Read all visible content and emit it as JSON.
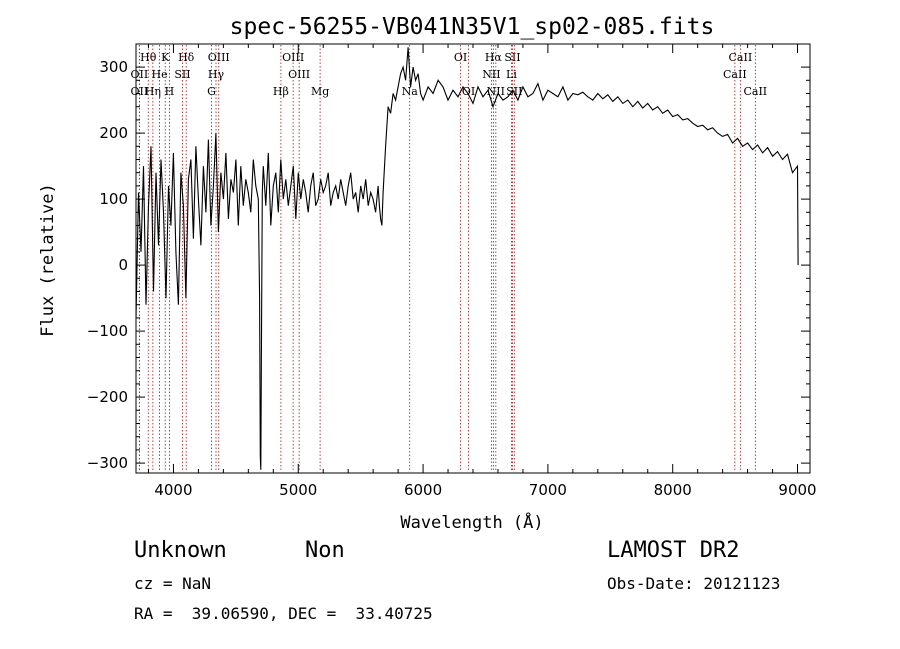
{
  "chart_data": {
    "type": "line",
    "title": "spec-56255-VB041N35V1_sp02-085.fits",
    "xlabel": "Wavelength (Å)",
    "ylabel": "Flux (relative)",
    "xlim": [
      3700,
      9100
    ],
    "ylim": [
      -315,
      335
    ],
    "x_ticks": [
      4000,
      5000,
      6000,
      7000,
      8000,
      9000
    ],
    "y_ticks": [
      -300,
      -200,
      -100,
      0,
      100,
      200,
      300
    ],
    "grid": false,
    "spectrum": {
      "wavelength": [
        3700,
        3720,
        3740,
        3760,
        3780,
        3800,
        3820,
        3840,
        3860,
        3880,
        3900,
        3920,
        3940,
        3960,
        3980,
        4000,
        4020,
        4040,
        4060,
        4080,
        4100,
        4120,
        4140,
        4160,
        4180,
        4200,
        4220,
        4240,
        4260,
        4280,
        4300,
        4320,
        4340,
        4360,
        4380,
        4400,
        4420,
        4440,
        4460,
        4480,
        4500,
        4520,
        4540,
        4560,
        4580,
        4600,
        4620,
        4640,
        4660,
        4680,
        4690,
        4696,
        4700,
        4706,
        4712,
        4720,
        4740,
        4760,
        4780,
        4800,
        4820,
        4840,
        4860,
        4880,
        4900,
        4920,
        4940,
        4960,
        4980,
        5000,
        5020,
        5040,
        5060,
        5080,
        5100,
        5120,
        5140,
        5160,
        5180,
        5200,
        5220,
        5240,
        5260,
        5280,
        5300,
        5320,
        5340,
        5360,
        5380,
        5400,
        5420,
        5440,
        5460,
        5480,
        5500,
        5520,
        5540,
        5560,
        5580,
        5600,
        5620,
        5640,
        5650,
        5660,
        5670,
        5680,
        5700,
        5720,
        5740,
        5760,
        5780,
        5800,
        5820,
        5840,
        5860,
        5880,
        5900,
        5920,
        5940,
        5960,
        5980,
        6000,
        6040,
        6080,
        6120,
        6160,
        6200,
        6240,
        6280,
        6320,
        6360,
        6400,
        6440,
        6480,
        6520,
        6560,
        6600,
        6640,
        6680,
        6720,
        6760,
        6800,
        6840,
        6880,
        6920,
        6960,
        7000,
        7040,
        7080,
        7120,
        7160,
        7200,
        7240,
        7280,
        7320,
        7360,
        7400,
        7440,
        7480,
        7520,
        7560,
        7600,
        7640,
        7680,
        7720,
        7760,
        7800,
        7840,
        7880,
        7920,
        7960,
        8000,
        8040,
        8080,
        8120,
        8160,
        8200,
        8240,
        8280,
        8320,
        8360,
        8400,
        8440,
        8480,
        8520,
        8560,
        8600,
        8640,
        8680,
        8720,
        8760,
        8800,
        8840,
        8880,
        8920,
        8960,
        9000,
        9005,
        9010
      ],
      "flux": [
        -80,
        110,
        20,
        150,
        -60,
        90,
        180,
        -40,
        140,
        30,
        160,
        80,
        -50,
        120,
        60,
        170,
        20,
        -60,
        140,
        90,
        -50,
        130,
        160,
        40,
        180,
        100,
        30,
        150,
        80,
        190,
        60,
        120,
        200,
        50,
        140,
        100,
        170,
        70,
        130,
        110,
        160,
        60,
        150,
        90,
        130,
        110,
        80,
        160,
        120,
        100,
        -50,
        -290,
        -310,
        -80,
        110,
        150,
        90,
        170,
        60,
        120,
        140,
        80,
        160,
        100,
        130,
        90,
        120,
        150,
        70,
        140,
        100,
        130,
        110,
        80,
        120,
        140,
        90,
        100,
        130,
        110,
        120,
        140,
        90,
        110,
        120,
        100,
        130,
        110,
        90,
        120,
        140,
        100,
        110,
        80,
        120,
        100,
        130,
        90,
        110,
        100,
        80,
        120,
        90,
        70,
        60,
        110,
        180,
        240,
        230,
        260,
        250,
        270,
        290,
        300,
        280,
        330,
        270,
        300,
        280,
        290,
        260,
        250,
        270,
        260,
        280,
        270,
        250,
        265,
        255,
        270,
        260,
        245,
        270,
        255,
        265,
        240,
        260,
        250,
        255,
        265,
        250,
        270,
        255,
        260,
        275,
        250,
        265,
        260,
        255,
        270,
        250,
        260,
        258,
        262,
        255,
        250,
        260,
        252,
        258,
        248,
        255,
        245,
        250,
        240,
        248,
        238,
        245,
        235,
        240,
        230,
        235,
        225,
        228,
        220,
        222,
        215,
        210,
        212,
        205,
        208,
        200,
        195,
        198,
        185,
        192,
        180,
        185,
        175,
        182,
        170,
        178,
        165,
        172,
        160,
        168,
        140,
        150,
        0
      ]
    },
    "lines": [
      {
        "label": "Hθ",
        "wave": 3798,
        "row": 1
      },
      {
        "label": "OII",
        "wave": 3727,
        "row": 2
      },
      {
        "label": "OII",
        "wave": 3727,
        "row": 3
      },
      {
        "label": "He",
        "wave": 3889,
        "row": 2
      },
      {
        "label": "Hη",
        "wave": 3835,
        "row": 3
      },
      {
        "label": "K",
        "wave": 3934,
        "row": 1
      },
      {
        "label": "H",
        "wave": 3968,
        "row": 3
      },
      {
        "label": "Hδ",
        "wave": 4102,
        "row": 1
      },
      {
        "label": "SII",
        "wave": 4072,
        "row": 2
      },
      {
        "label": "OIII",
        "wave": 4363,
        "row": 1
      },
      {
        "label": "Hγ",
        "wave": 4341,
        "row": 2
      },
      {
        "label": "G",
        "wave": 4305,
        "row": 3
      },
      {
        "label": "OIII",
        "wave": 4959,
        "row": 1
      },
      {
        "label": "OIII",
        "wave": 5007,
        "row": 2
      },
      {
        "label": "Hβ",
        "wave": 4861,
        "row": 3
      },
      {
        "label": "Mg",
        "wave": 5175,
        "row": 3
      },
      {
        "label": "Na",
        "wave": 5893,
        "row": 3
      },
      {
        "label": "OI",
        "wave": 6300,
        "row": 1
      },
      {
        "label": "OI",
        "wave": 6364,
        "row": 3
      },
      {
        "label": "Hα",
        "wave": 6563,
        "row": 1
      },
      {
        "label": "SII",
        "wave": 6716,
        "row": 1
      },
      {
        "label": "NII",
        "wave": 6548,
        "row": 2
      },
      {
        "label": "Li",
        "wave": 6708,
        "row": 2
      },
      {
        "label": "NII",
        "wave": 6583,
        "row": 3
      },
      {
        "label": "SII",
        "wave": 6731,
        "row": 3
      },
      {
        "label": "CaII",
        "wave": 8542,
        "row": 1
      },
      {
        "label": "CaII",
        "wave": 8498,
        "row": 2
      },
      {
        "label": "CaII",
        "wave": 8662,
        "row": 3
      }
    ]
  },
  "info": {
    "class": "Unknown",
    "subclass": "Non",
    "survey": "LAMOST DR2",
    "cz": "cz = NaN",
    "obs_date": "Obs-Date: 20121123",
    "coords": "RA =  39.06590, DEC =  33.40725"
  }
}
